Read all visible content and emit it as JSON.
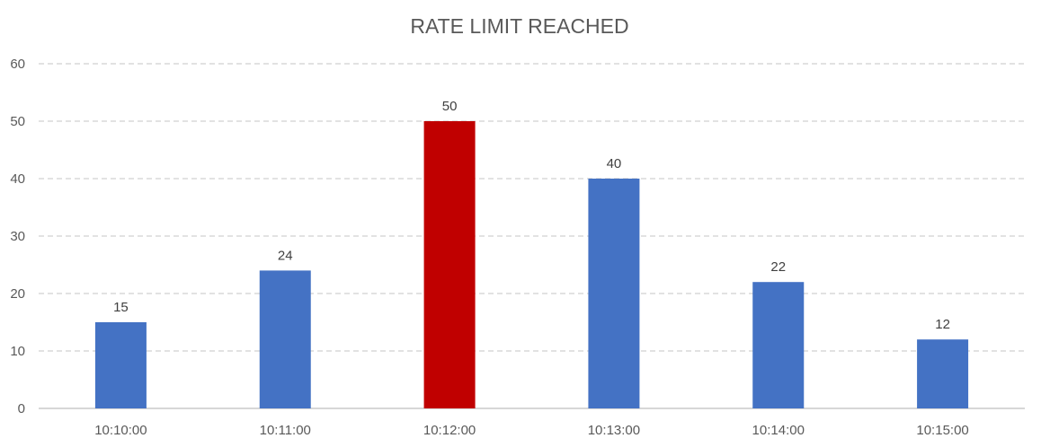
{
  "chart_data": {
    "type": "bar",
    "title": "RATE LIMIT REACHED",
    "xlabel": "",
    "ylabel": "",
    "categories": [
      "10:10:00",
      "10:11:00",
      "10:12:00",
      "10:13:00",
      "10:14:00",
      "10:15:00"
    ],
    "values": [
      15,
      24,
      50,
      40,
      22,
      12
    ],
    "data_labels": [
      "15",
      "24",
      "50",
      "40",
      "22",
      "12"
    ],
    "ylim": [
      0,
      60
    ],
    "y_ticks": [
      0,
      10,
      20,
      30,
      40,
      50,
      60
    ],
    "grid": true,
    "legend": "none",
    "colors": {
      "default_bar": "#4472C4",
      "highlight_bar": "#C00000",
      "highlight_category": "10:12:00"
    }
  }
}
